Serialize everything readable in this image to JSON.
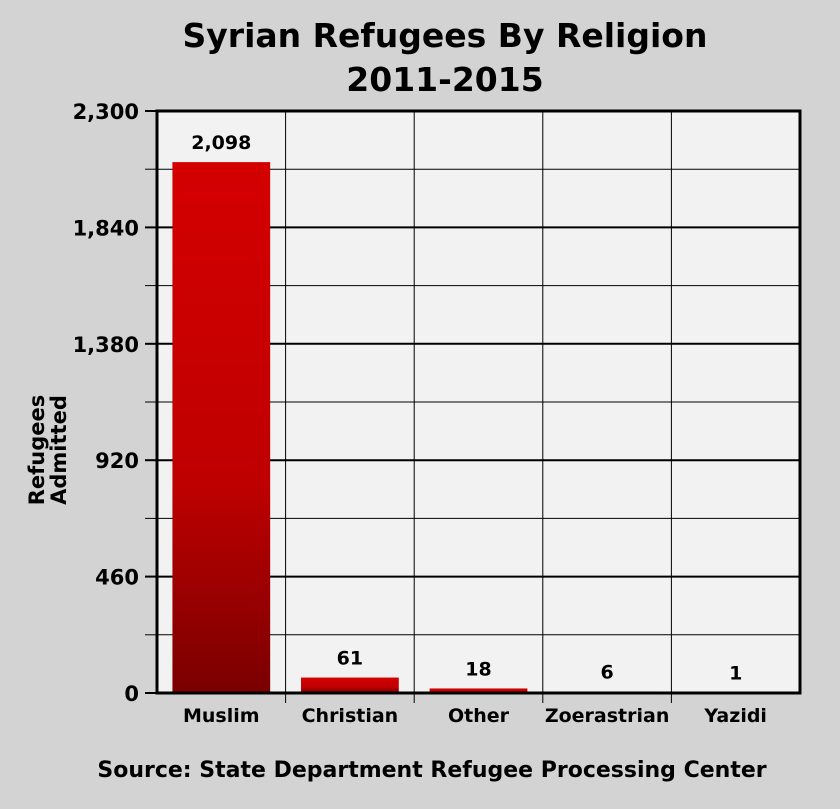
{
  "chart_data": {
    "type": "bar",
    "title": "Syrian Refugees By Religion",
    "subtitle": "2011-2015",
    "ylabel_lines": [
      "Refugees",
      "Admitted"
    ],
    "xlabel": "",
    "categories": [
      "Muslim",
      "Christian",
      "Other",
      "Zoerastrian",
      "Yazidi"
    ],
    "values": [
      2098,
      61,
      18,
      6,
      1
    ],
    "value_labels": [
      "2,098",
      "61",
      "18",
      "6",
      "1"
    ],
    "ylim": [
      0,
      2300
    ],
    "yticks": [
      0,
      460,
      920,
      1380,
      1840,
      2300
    ],
    "ytick_labels": [
      "0",
      "460",
      "920",
      "1,380",
      "1,840",
      "2,300"
    ],
    "grid": true,
    "legend": "none",
    "source": "Source: State Department Refugee Processing Center",
    "colors": {
      "background": "#d3d3d3",
      "plot_area": "#f2f2f2",
      "bar_top": "#d40000",
      "bar_bottom": "#7a0000",
      "grid": "#000000"
    }
  }
}
